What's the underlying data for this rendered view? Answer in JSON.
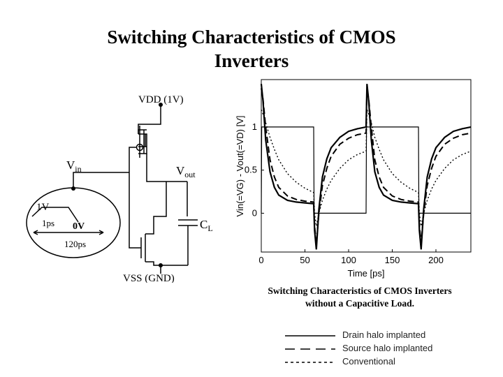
{
  "slide": {
    "title_line1": "Switching Characteristics of CMOS",
    "title_line2": "Inverters"
  },
  "circuit": {
    "vdd_label": "VDD (1V)",
    "vss_label": "VSS (GND)",
    "vin_label": "V",
    "vin_sub": "in",
    "vout_label": "V",
    "vout_sub": "out",
    "cl_label": "C",
    "cl_sub": "L",
    "pulse_high": "1V",
    "pulse_low": "0V",
    "rise_time": "1ps",
    "period": "120ps"
  },
  "chart_data": {
    "type": "line",
    "xlabel": "Time [ps]",
    "ylabel": "Vin(=VG) - Vout(=VD) [V]",
    "xlim": [
      0,
      240
    ],
    "ylim": [
      -0.45,
      1.55
    ],
    "xticks": [
      0,
      50,
      100,
      150,
      200
    ],
    "yticks": [
      0,
      0.5,
      1
    ],
    "xtick_labels": [
      "0",
      "50",
      "100",
      "150",
      "200"
    ],
    "ytick_labels": [
      "0",
      "0.5",
      "1"
    ],
    "input": {
      "x": [
        0,
        0.5,
        60,
        60.5,
        120,
        120.5,
        180,
        180.5,
        240
      ],
      "y": [
        0,
        1,
        1,
        0,
        0,
        1,
        1,
        0,
        0
      ]
    },
    "series": [
      {
        "name": "Drain halo implanted",
        "style": "solid",
        "x": [
          0,
          2,
          5,
          10,
          15,
          20,
          30,
          40,
          50,
          60,
          61,
          63,
          66,
          70,
          75,
          80,
          90,
          100,
          110,
          120,
          121,
          123,
          126,
          130,
          135,
          140,
          150,
          160,
          170,
          180,
          181,
          183,
          186,
          190,
          195,
          200,
          210,
          220,
          230,
          240
        ],
        "y": [
          1.5,
          1.3,
          0.85,
          0.48,
          0.3,
          0.21,
          0.15,
          0.13,
          0.12,
          0.11,
          -0.2,
          -0.42,
          0.05,
          0.42,
          0.63,
          0.76,
          0.88,
          0.95,
          0.98,
          1.0,
          1.5,
          1.3,
          0.85,
          0.48,
          0.3,
          0.21,
          0.15,
          0.13,
          0.12,
          0.11,
          -0.2,
          -0.42,
          0.05,
          0.42,
          0.63,
          0.76,
          0.88,
          0.95,
          0.98,
          1.0
        ]
      },
      {
        "name": "Source halo implanted",
        "style": "dashed",
        "x": [
          0,
          2,
          5,
          10,
          15,
          20,
          30,
          40,
          50,
          60,
          61,
          63,
          66,
          70,
          75,
          80,
          90,
          100,
          110,
          120,
          121,
          123,
          126,
          130,
          135,
          140,
          150,
          160,
          170,
          180,
          181,
          183,
          186,
          190,
          195,
          200,
          210,
          220,
          230,
          240
        ],
        "y": [
          1.45,
          1.32,
          1.0,
          0.62,
          0.42,
          0.3,
          0.2,
          0.16,
          0.14,
          0.13,
          -0.15,
          -0.35,
          0.0,
          0.32,
          0.52,
          0.66,
          0.8,
          0.87,
          0.91,
          0.93,
          1.45,
          1.32,
          1.0,
          0.62,
          0.42,
          0.3,
          0.2,
          0.16,
          0.14,
          0.13,
          -0.15,
          -0.35,
          0.0,
          0.32,
          0.52,
          0.66,
          0.8,
          0.87,
          0.91,
          0.93
        ]
      },
      {
        "name": "Conventional",
        "style": "dotted",
        "x": [
          0,
          2,
          5,
          10,
          15,
          20,
          30,
          40,
          50,
          60,
          61,
          63,
          66,
          70,
          75,
          80,
          90,
          100,
          110,
          120,
          121,
          123,
          126,
          130,
          135,
          140,
          150,
          160,
          170,
          180,
          181,
          183,
          186,
          190,
          195,
          200,
          210,
          220,
          230,
          240
        ],
        "y": [
          1.2,
          1.15,
          1.05,
          0.88,
          0.74,
          0.62,
          0.46,
          0.36,
          0.29,
          0.24,
          0.0,
          -0.15,
          0.0,
          0.15,
          0.28,
          0.38,
          0.52,
          0.62,
          0.68,
          0.72,
          1.2,
          1.15,
          1.05,
          0.88,
          0.74,
          0.62,
          0.46,
          0.36,
          0.29,
          0.24,
          0.0,
          -0.15,
          0.0,
          0.15,
          0.28,
          0.38,
          0.52,
          0.62,
          0.68,
          0.72
        ]
      }
    ]
  },
  "caption": {
    "line1": "Switching Characteristics of CMOS Inverters",
    "line2": "without a Capacitive Load."
  },
  "legend": {
    "items": [
      {
        "label": "Drain halo implanted",
        "style": "solid"
      },
      {
        "label": "Source halo implanted",
        "style": "dashed"
      },
      {
        "label": "Conventional",
        "style": "dotted"
      }
    ]
  }
}
